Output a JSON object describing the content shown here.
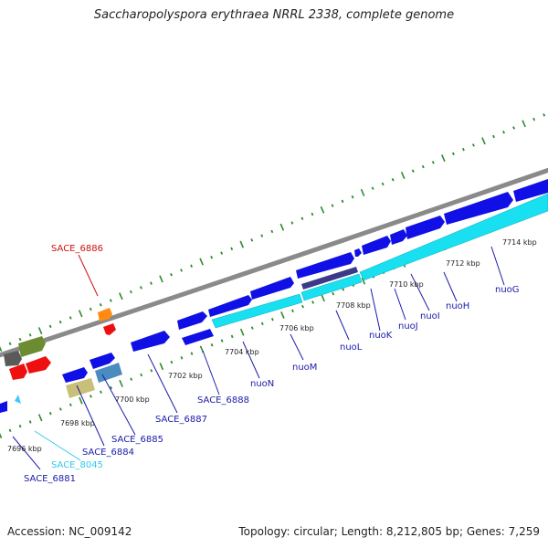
{
  "title": "Saccharopolyspora erythraea NRRL 2338, complete genome",
  "footer": {
    "accession": "Accession: NC_009142",
    "summary": "Topology: circular; Length: 8,212,805 bp; Genes: 7,259"
  },
  "colors": {
    "backbone": "#8a8a8a",
    "tick": "#2e8b2e",
    "gene_blue": "#1010e6",
    "gene_cyan": "#18e0f0",
    "gene_red": "#ee1010",
    "gene_orange": "#ff8c10",
    "gene_olive": "#6b8c30",
    "gene_khaki": "#c8c078",
    "gene_steel": "#4a8cc0",
    "gene_gray": "#5a5a5a",
    "gene_purple": "#3a3a8a",
    "label_blue": "#1a1aaa",
    "label_red": "#cc1010",
    "label_cyan": "#30c8ee"
  },
  "tick_labels": [
    "7696 kbp",
    "7698 kbp",
    "7700 kbp",
    "7702 kbp",
    "7704 kbp",
    "7706 kbp",
    "7708 kbp",
    "7710 kbp",
    "7712 kbp",
    "7714 kbp"
  ],
  "gene_labels": [
    {
      "text": "SACE_6886",
      "color": "red"
    },
    {
      "text": "SACE_6881",
      "color": "blue"
    },
    {
      "text": "SACE_8045",
      "color": "cyan"
    },
    {
      "text": "SACE_6884",
      "color": "blue"
    },
    {
      "text": "SACE_6885",
      "color": "blue"
    },
    {
      "text": "SACE_6887",
      "color": "blue"
    },
    {
      "text": "SACE_6888",
      "color": "blue"
    },
    {
      "text": "nuoN",
      "color": "blue"
    },
    {
      "text": "nuoM",
      "color": "blue"
    },
    {
      "text": "nuoL",
      "color": "blue"
    },
    {
      "text": "nuoK",
      "color": "blue"
    },
    {
      "text": "nuoJ",
      "color": "blue"
    },
    {
      "text": "nuoI",
      "color": "blue"
    },
    {
      "text": "nuoH",
      "color": "blue"
    },
    {
      "text": "nuoG",
      "color": "blue"
    }
  ]
}
